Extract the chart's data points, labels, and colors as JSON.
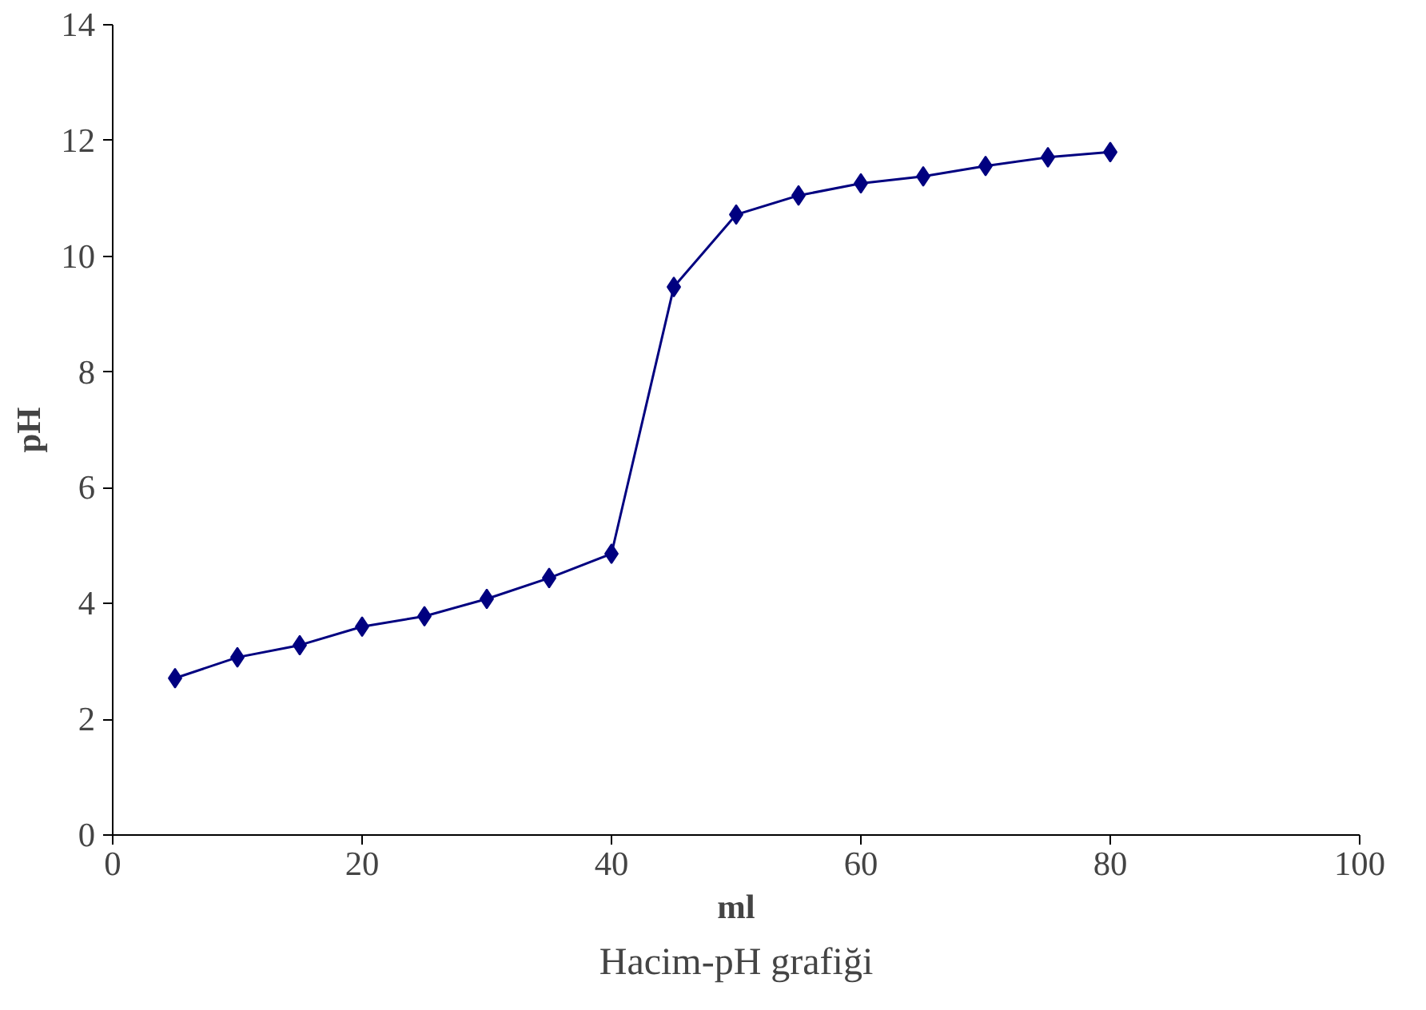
{
  "chart_data": {
    "type": "line",
    "title": "Hacim-pH grafiği",
    "xlabel": "ml",
    "ylabel": "pH",
    "x": [
      5,
      10,
      15,
      20,
      25,
      30,
      35,
      40,
      45,
      50,
      55,
      60,
      65,
      70,
      75,
      80
    ],
    "series": [
      {
        "color": "#000080",
        "values": [
          2.71,
          3.07,
          3.28,
          3.6,
          3.78,
          4.08,
          4.44,
          4.86,
          9.47,
          10.72,
          11.05,
          11.26,
          11.38,
          11.56,
          11.71,
          11.8
        ]
      }
    ],
    "xlim": [
      0,
      100
    ],
    "xticks": [
      0,
      20,
      40,
      60,
      80,
      100
    ],
    "ylim": [
      0,
      14
    ],
    "yticks": [
      0,
      2,
      4,
      6,
      8,
      10,
      12,
      14
    ],
    "grid": false,
    "marker": "diamond",
    "line_style": "solid"
  }
}
